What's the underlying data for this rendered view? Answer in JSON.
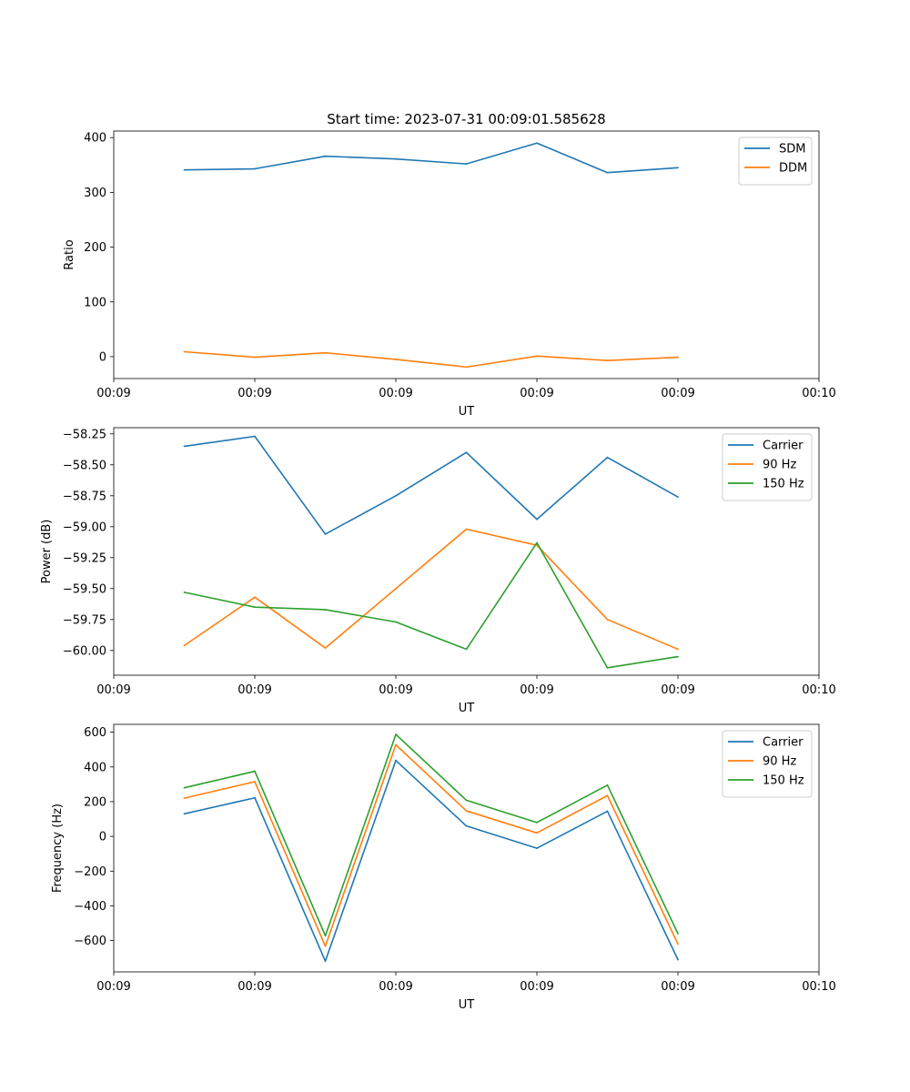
{
  "figure_title": "Start time: 2023-07-31 00:09:01.585628",
  "colors": {
    "blue": "#1f77b4",
    "orange": "#ff7f0e",
    "green": "#2ca02c"
  },
  "chart_data": [
    {
      "type": "line",
      "title": "Start time: 2023-07-31 00:09:01.585628",
      "xlabel": "UT",
      "ylabel": "Ratio",
      "x": [
        0.5,
        1.0,
        1.5,
        2.0,
        2.5,
        3.0,
        3.5,
        4.0
      ],
      "xlim": [
        0.0,
        5.0
      ],
      "xticks": [
        0,
        1,
        2,
        3,
        4,
        5
      ],
      "xtick_labels": [
        "00:09",
        "00:09",
        "00:09",
        "00:09",
        "00:09",
        "00:10"
      ],
      "ylim": [
        -40,
        412
      ],
      "yticks": [
        0,
        100,
        200,
        300,
        400
      ],
      "ytick_labels": [
        "0",
        "100",
        "200",
        "300",
        "400"
      ],
      "legend_position": "top-right",
      "series": [
        {
          "name": "SDM",
          "color": "#1f77b4",
          "values": [
            341,
            343,
            366,
            361,
            352,
            390,
            336,
            345
          ]
        },
        {
          "name": "DDM",
          "color": "#ff7f0e",
          "values": [
            9,
            -1,
            7,
            -5,
            -19,
            1,
            -7,
            -1
          ]
        }
      ]
    },
    {
      "type": "line",
      "xlabel": "UT",
      "ylabel": "Power (dB)",
      "x": [
        0.5,
        1.0,
        1.5,
        2.0,
        2.5,
        3.0,
        3.5,
        4.0
      ],
      "xlim": [
        0.0,
        5.0
      ],
      "xticks": [
        0,
        1,
        2,
        3,
        4,
        5
      ],
      "xtick_labels": [
        "00:09",
        "00:09",
        "00:09",
        "00:09",
        "00:09",
        "00:10"
      ],
      "ylim": [
        -60.2,
        -58.2
      ],
      "yticks": [
        -60.0,
        -59.75,
        -59.5,
        -59.25,
        -59.0,
        -58.75,
        -58.5,
        -58.25
      ],
      "ytick_labels": [
        "−60.00",
        "−59.75",
        "−59.50",
        "−59.25",
        "−59.00",
        "−58.75",
        "−58.50",
        "−58.25"
      ],
      "legend_position": "top-right",
      "series": [
        {
          "name": "Carrier",
          "color": "#1f77b4",
          "values": [
            -58.35,
            -58.27,
            -59.06,
            -58.75,
            -58.4,
            -58.94,
            -58.44,
            -58.76
          ]
        },
        {
          "name": "90 Hz",
          "color": "#ff7f0e",
          "values": [
            -59.96,
            -59.57,
            -59.98,
            -59.5,
            -59.02,
            -59.15,
            -59.75,
            -59.99
          ]
        },
        {
          "name": "150 Hz",
          "color": "#2ca02c",
          "values": [
            -59.53,
            -59.65,
            -59.67,
            -59.77,
            -59.99,
            -59.13,
            -60.14,
            -60.05
          ]
        }
      ]
    },
    {
      "type": "line",
      "xlabel": "UT",
      "ylabel": "Frequency (Hz)",
      "x": [
        0.5,
        1.0,
        1.5,
        2.0,
        2.5,
        3.0,
        3.5,
        4.0
      ],
      "xlim": [
        0.0,
        5.0
      ],
      "xticks": [
        0,
        1,
        2,
        3,
        4,
        5
      ],
      "xtick_labels": [
        "00:09",
        "00:09",
        "00:09",
        "00:09",
        "00:09",
        "00:10"
      ],
      "ylim": [
        -780,
        645
      ],
      "yticks": [
        -600,
        -400,
        -200,
        0,
        200,
        400,
        600
      ],
      "ytick_labels": [
        "−600",
        "−400",
        "−200",
        "0",
        "200",
        "400",
        "600"
      ],
      "legend_position": "top-right",
      "series": [
        {
          "name": "Carrier",
          "color": "#1f77b4",
          "values": [
            130,
            222,
            -718,
            437,
            60,
            -68,
            145,
            -710
          ]
        },
        {
          "name": "90 Hz",
          "color": "#ff7f0e",
          "values": [
            220,
            315,
            -632,
            527,
            147,
            20,
            235,
            -620
          ]
        },
        {
          "name": "150 Hz",
          "color": "#2ca02c",
          "values": [
            280,
            375,
            -572,
            587,
            208,
            80,
            295,
            -560
          ]
        }
      ]
    }
  ]
}
